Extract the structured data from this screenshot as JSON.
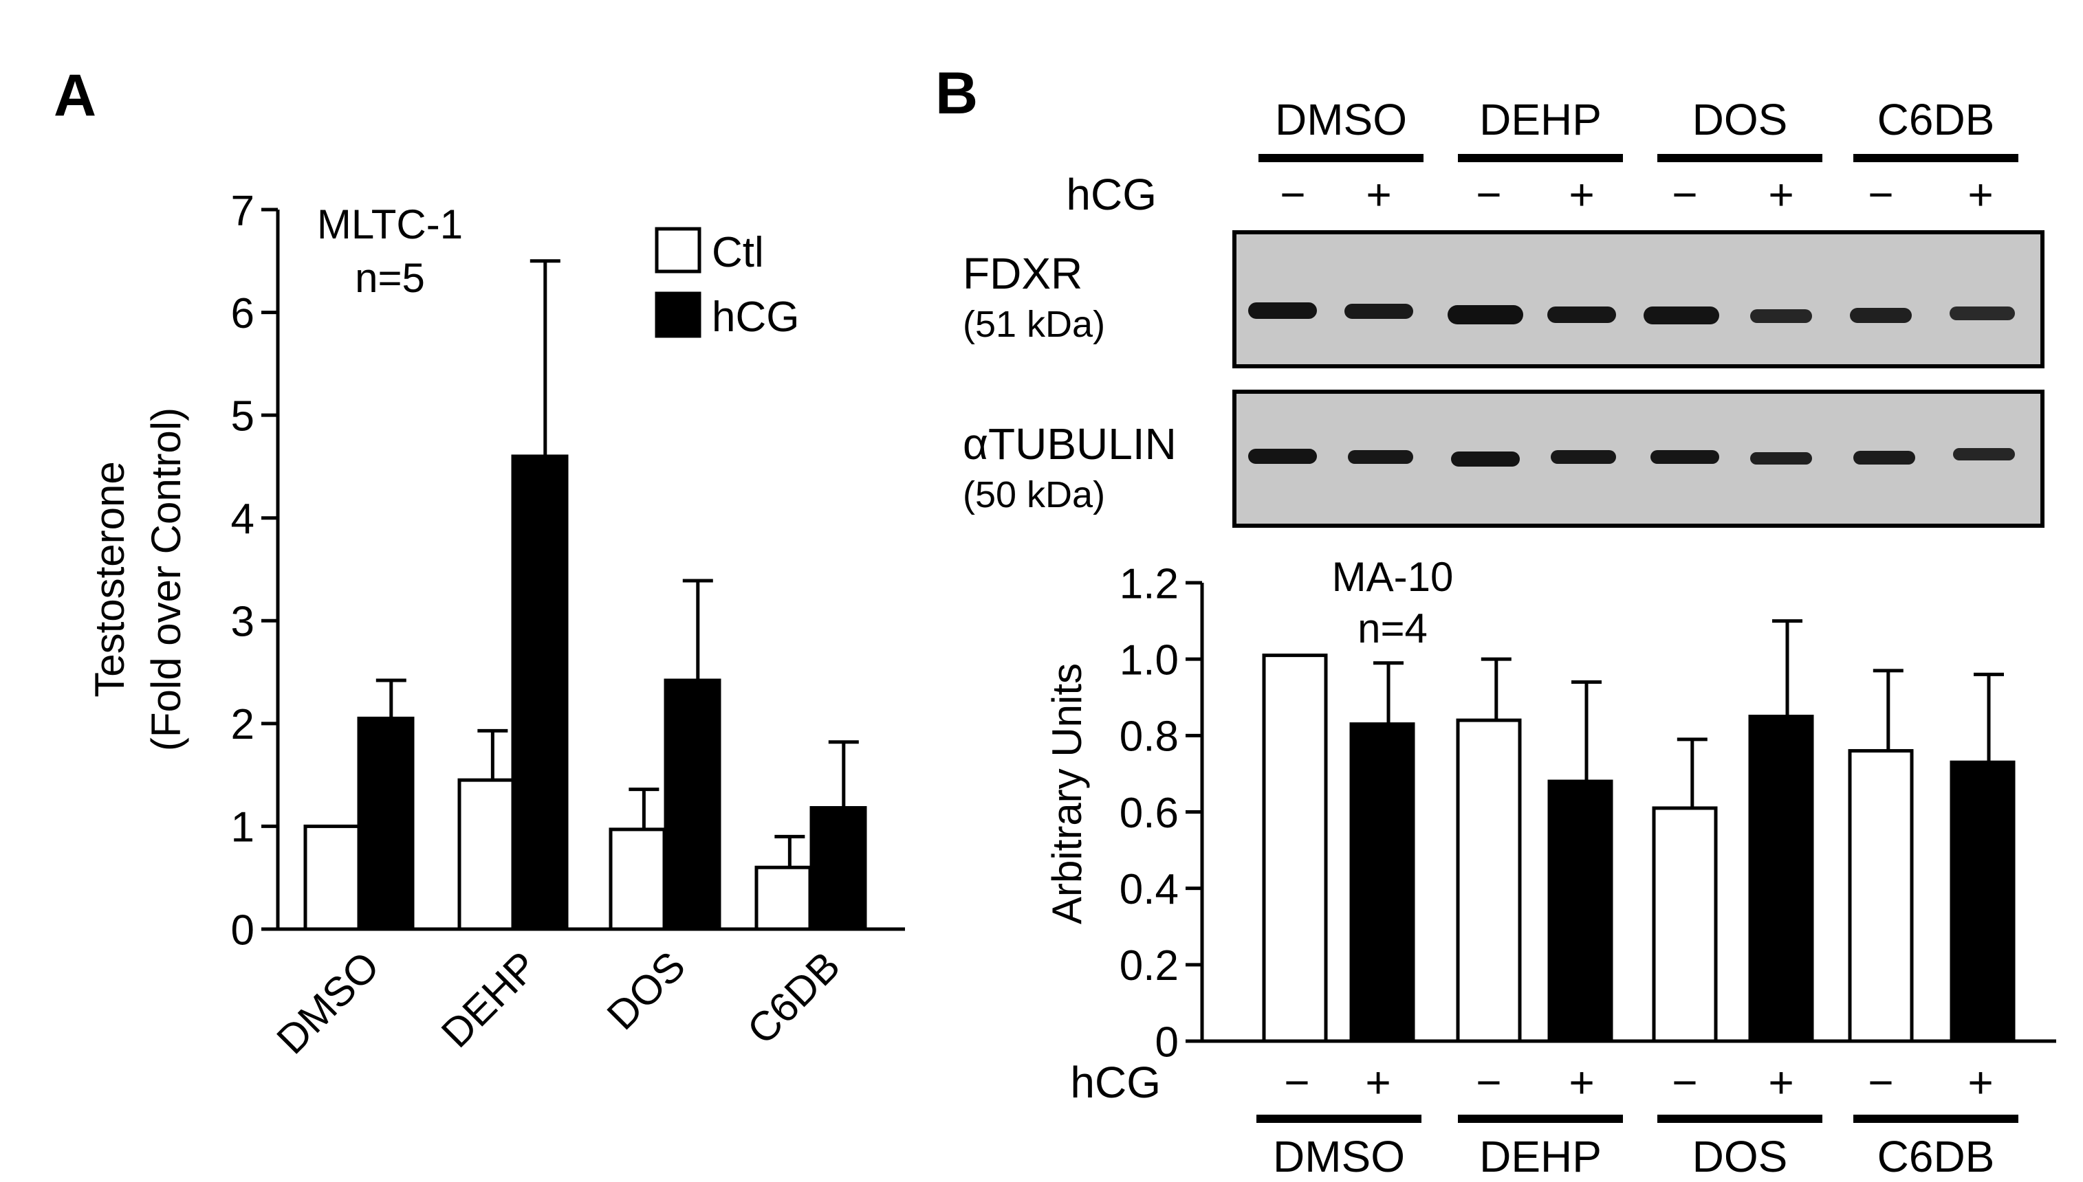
{
  "panels": {
    "a_label": "A",
    "b_label": "B"
  },
  "blot": {
    "group_labels": [
      "DMSO",
      "DEHP",
      "DOS",
      "C6DB"
    ],
    "hcg_label": "hCG",
    "hcg_signs": [
      "−",
      "+",
      "−",
      "+",
      "−",
      "+",
      "−",
      "+"
    ],
    "rows": [
      {
        "name": "FDXR",
        "size": "(51 kDa)"
      },
      {
        "name": "αTUBULIN",
        "size": "(50 kDa)"
      }
    ],
    "band_color": "#141414",
    "background_color": "#c8c8c8"
  },
  "colors": {
    "ctl_fill": "#ffffff",
    "hcg_fill": "#000000",
    "stroke": "#000000"
  },
  "chart_data": [
    {
      "type": "bar",
      "title": "",
      "annotation": [
        "MLTC-1",
        "n=5"
      ],
      "xlabel": "",
      "ylabel": [
        "Testosterone",
        "(Fold over Control)"
      ],
      "categories": [
        "DMSO",
        "DEHP",
        "DOS",
        "C6DB"
      ],
      "ylim": [
        0,
        7
      ],
      "yticks": [
        0,
        1,
        2,
        3,
        4,
        5,
        6,
        7
      ],
      "legend_position": "top-right",
      "series": [
        {
          "name": "Ctl",
          "values": [
            1.0,
            1.45,
            0.97,
            0.6
          ],
          "errors": [
            0.0,
            0.48,
            0.39,
            0.3
          ]
        },
        {
          "name": "hCG",
          "values": [
            2.05,
            4.6,
            2.42,
            1.18
          ],
          "errors": [
            0.37,
            1.9,
            0.97,
            0.64
          ]
        }
      ]
    },
    {
      "type": "bar",
      "title": "",
      "annotation": [
        "MA-10",
        "n=4"
      ],
      "xlabel": "",
      "ylabel": [
        "Arbitrary Units"
      ],
      "categories": [
        "DMSO",
        "DEHP",
        "DOS",
        "C6DB"
      ],
      "x_sublabel": "hCG",
      "x_signs": [
        "−",
        "+",
        "−",
        "+",
        "−",
        "+",
        "−",
        "+"
      ],
      "ylim": [
        0,
        1.2
      ],
      "yticks": [
        "0",
        "0.2",
        "0.4",
        "0.6",
        "0.8",
        "1.0",
        "1.2"
      ],
      "series": [
        {
          "name": "",
          "values": [
            1.01,
            0.84,
            0.61,
            0.76
          ],
          "errors": [
            0.0,
            0.16,
            0.18,
            0.21
          ]
        },
        {
          "name": "",
          "values": [
            0.83,
            0.68,
            0.85,
            0.73
          ],
          "errors": [
            0.16,
            0.26,
            0.25,
            0.23
          ]
        }
      ]
    }
  ]
}
